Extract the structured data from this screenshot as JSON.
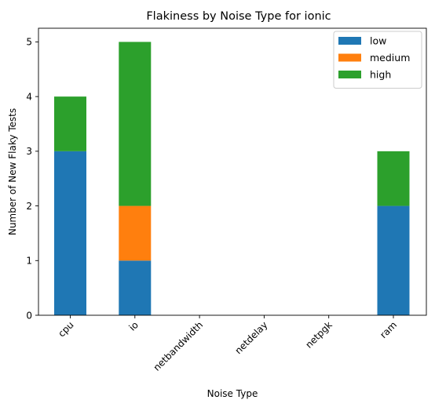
{
  "chart_data": {
    "type": "bar",
    "stacked": true,
    "title": "Flakiness by Noise Type for ionic",
    "xlabel": "Noise Type",
    "ylabel": "Number of New Flaky Tests",
    "categories": [
      "cpu",
      "io",
      "netbandwidth",
      "netdelay",
      "netpgk",
      "ram"
    ],
    "series": [
      {
        "name": "low",
        "color": "#1f77b4",
        "values": [
          3,
          1,
          0,
          0,
          0,
          2
        ]
      },
      {
        "name": "medium",
        "color": "#ff7f0e",
        "values": [
          0,
          1,
          0,
          0,
          0,
          0
        ]
      },
      {
        "name": "high",
        "color": "#2ca02c",
        "values": [
          1,
          3,
          0,
          0,
          0,
          1
        ]
      }
    ],
    "ylim": [
      0,
      5.25
    ],
    "yticks": [
      0,
      1,
      2,
      3,
      4,
      5
    ],
    "xtick_rotation_deg": 45,
    "grid": false,
    "legend": {
      "position": "top-right"
    }
  }
}
